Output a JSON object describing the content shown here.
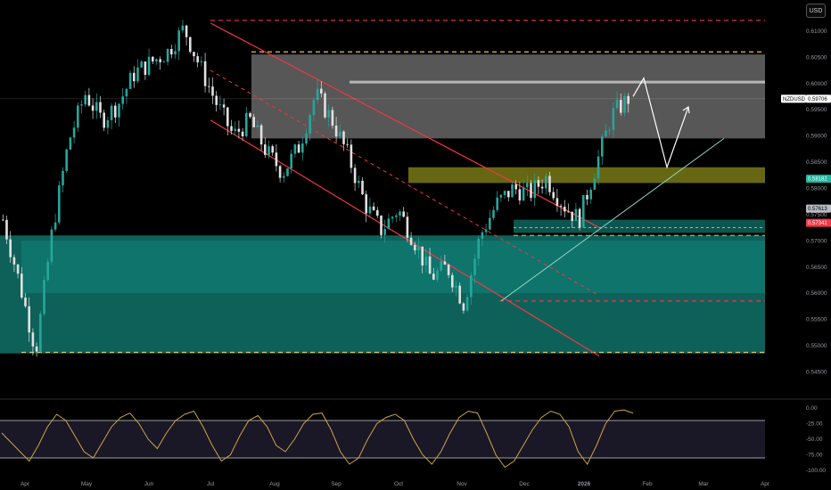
{
  "header": {
    "currency_button": "USD"
  },
  "symbol_label": "NZDUSD",
  "price_tags": [
    {
      "text": "0.59706",
      "bg": "#ffffff",
      "fg": "#000000",
      "value": 0.59706
    },
    {
      "text": "0.58182",
      "bg": "#1fb8a3",
      "fg": "#ffffff",
      "value": 0.58182
    },
    {
      "text": "0.57613",
      "bg": "#b8bcc4",
      "fg": "#000000",
      "value": 0.57613
    },
    {
      "text": "0.57341",
      "bg": "#f23645",
      "fg": "#ffffff",
      "value": 0.57341
    }
  ],
  "colors": {
    "up": "#26a69a",
    "down": "#e0e0e0",
    "channel": "#f23645",
    "zone_gray": "#9e9e9e",
    "zone_yellow": "#8a8a1a",
    "zone_teal": "#0f6b63",
    "dash_yellow": "#e6c34a",
    "oscillator": "#c9a54a",
    "trendline": "#8fd3c4",
    "projection": "#ffffff"
  },
  "chart_data": [
    {
      "type": "candlestick",
      "title": "",
      "series": [
        {
          "name": "NZDUSD"
        }
      ],
      "ylim": [
        0.5425,
        0.6125
      ],
      "y_ticks": [
        "0.61000",
        "0.60500",
        "0.60000",
        "0.59500",
        "0.59000",
        "0.58500",
        "0.58000",
        "0.57500",
        "0.57000",
        "0.56500",
        "0.56000",
        "0.55500",
        "0.55000",
        "0.54500"
      ],
      "x_ticks": [
        "Apr",
        "May",
        "Jun",
        "Jul",
        "Aug",
        "Sep",
        "Oct",
        "Nov",
        "Dec",
        "2026",
        "Feb",
        "Mar",
        "Apr"
      ],
      "ohlc_points": [
        {
          "date": "Mar",
          "close": 0.574
        },
        {
          "date": "Apr",
          "close": 0.562
        },
        {
          "date": "Apr",
          "close": 0.549
        },
        {
          "date": "Apr",
          "close": 0.572
        },
        {
          "date": "Apr",
          "close": 0.589
        },
        {
          "date": "May",
          "close": 0.598
        },
        {
          "date": "May",
          "close": 0.593
        },
        {
          "date": "May",
          "close": 0.596
        },
        {
          "date": "Jun",
          "close": 0.602
        },
        {
          "date": "Jun",
          "close": 0.604
        },
        {
          "date": "Jun",
          "close": 0.606
        },
        {
          "date": "Jul",
          "close": 0.6105
        },
        {
          "date": "Jul",
          "close": 0.603
        },
        {
          "date": "Jul",
          "close": 0.596
        },
        {
          "date": "Aug",
          "close": 0.59
        },
        {
          "date": "Aug",
          "close": 0.593
        },
        {
          "date": "Aug",
          "close": 0.587
        },
        {
          "date": "Sep",
          "close": 0.583
        },
        {
          "date": "Sep",
          "close": 0.588
        },
        {
          "date": "Sep",
          "close": 0.598
        },
        {
          "date": "Sep",
          "close": 0.593
        },
        {
          "date": "Oct",
          "close": 0.586
        },
        {
          "date": "Oct",
          "close": 0.577
        },
        {
          "date": "Oct",
          "close": 0.572
        },
        {
          "date": "Oct",
          "close": 0.576
        },
        {
          "date": "Nov",
          "close": 0.57
        },
        {
          "date": "Nov",
          "close": 0.563
        },
        {
          "date": "Nov",
          "close": 0.565
        },
        {
          "date": "Nov",
          "close": 0.558
        },
        {
          "date": "Dec",
          "close": 0.571
        },
        {
          "date": "Dec",
          "close": 0.577
        },
        {
          "date": "Dec",
          "close": 0.58
        },
        {
          "date": "Dec",
          "close": 0.579
        },
        {
          "date": "Dec",
          "close": 0.582
        },
        {
          "date": "Jan",
          "close": 0.577
        },
        {
          "date": "Jan",
          "close": 0.574
        },
        {
          "date": "Jan",
          "close": 0.584
        },
        {
          "date": "Jan",
          "close": 0.594
        },
        {
          "date": "Jan",
          "close": 0.5971
        }
      ],
      "zones": [
        {
          "name": "supply zone",
          "y_top": 0.6055,
          "y_bottom": 0.5895,
          "color": "gray"
        },
        {
          "name": "mid zone",
          "y_top": 0.584,
          "y_bottom": 0.581,
          "color": "yellow"
        },
        {
          "name": "demand zone",
          "y_top": 0.571,
          "y_bottom": 0.5485,
          "color": "teal"
        }
      ],
      "horizontal_levels": [
        0.612,
        0.606,
        0.5585,
        0.5487
      ],
      "projection_path": [
        0.5975,
        0.601,
        0.584,
        0.5955
      ],
      "grid": false,
      "legend": "none"
    },
    {
      "type": "line",
      "title": "",
      "series": [
        {
          "name": ""
        }
      ],
      "ylim": [
        -100,
        0
      ],
      "y_ticks": [
        "0.00",
        "-25.00",
        "-50.00",
        "-75.00",
        "-100.00"
      ],
      "levels": [
        -20,
        -80
      ],
      "values": [
        -40,
        -55,
        -70,
        -85,
        -60,
        -30,
        -10,
        -20,
        -45,
        -70,
        -80,
        -55,
        -30,
        -15,
        -8,
        -25,
        -50,
        -65,
        -40,
        -20,
        -10,
        -5,
        -30,
        -60,
        -85,
        -75,
        -45,
        -20,
        -12,
        -30,
        -60,
        -70,
        -50,
        -25,
        -10,
        -8,
        -35,
        -70,
        -90,
        -80,
        -50,
        -25,
        -15,
        -10,
        -20,
        -50,
        -75,
        -90,
        -70,
        -40,
        -15,
        -5,
        -8,
        -40,
        -75,
        -95,
        -85,
        -60,
        -35,
        -15,
        -5,
        -10,
        -30,
        -70,
        -90,
        -60,
        -25,
        -5,
        -3,
        -8
      ]
    }
  ]
}
